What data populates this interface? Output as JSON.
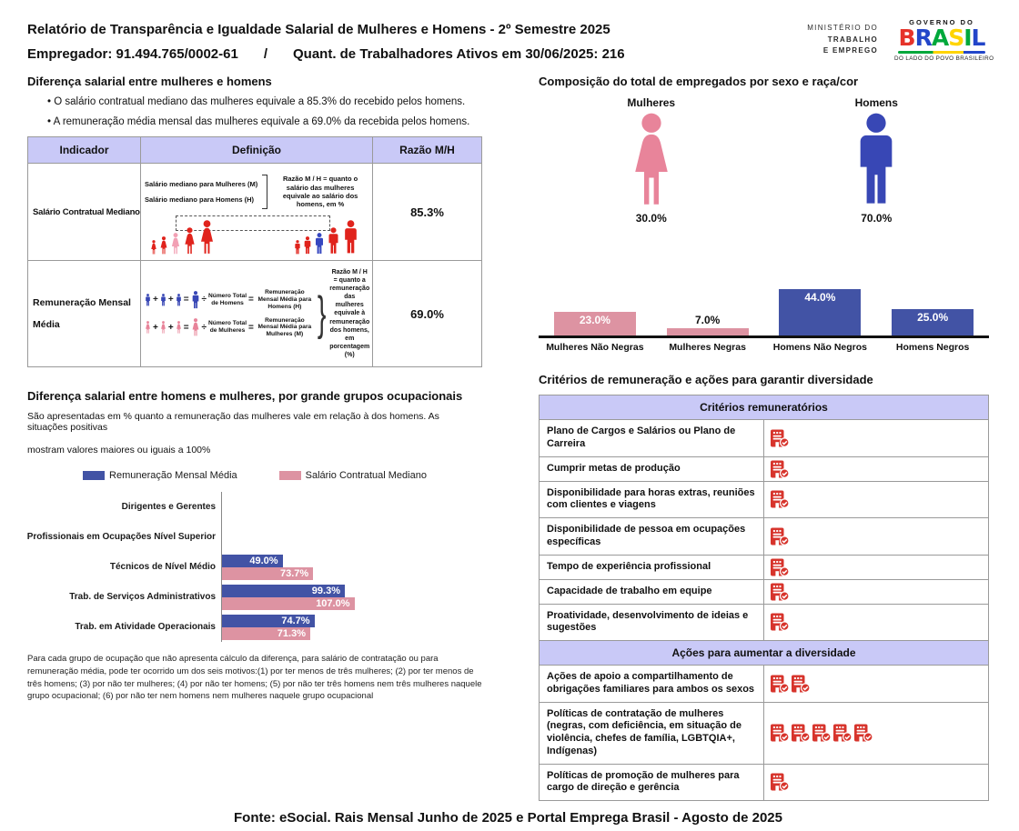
{
  "header": {
    "title": "Relatório de Transparência e Igualdade Salarial de Mulheres e Homens - 2º Semestre 2025",
    "employer": "Empregador: 91.494.765/0002-61",
    "separator": "/",
    "workers": "Quant. de Trabalhadores Ativos em 30/06/2025: 216",
    "ministry_lines": [
      "MINISTÉRIO DO",
      "TRABALHO",
      "E EMPREGO"
    ],
    "gov_logo": {
      "top": "GOVERNO DO",
      "brand": "BRASIL",
      "brand_colors": [
        "#e6332a",
        "#2346c9",
        "#00a83b",
        "#ffd400",
        "#00a83b",
        "#2346c9"
      ],
      "bottom": "DO LADO DO POVO BRASILEIRO"
    }
  },
  "salary_diff": {
    "title": "Diferença salarial entre mulheres e homens",
    "bullets": [
      "O salário contratual mediano das mulheres equivale a 85.3% do recebido pelos homens.",
      "A remuneração média mensal das mulheres equivale a 69.0% da recebida pelos homens."
    ],
    "table": {
      "headers": [
        "Indicador",
        "Definição",
        "Razão M/H"
      ],
      "rows": [
        {
          "indicator": "Salário Contratual Mediano",
          "def_lines": [
            "Salário mediano para Mulheres (M)",
            "Salário mediano para Homens (H)"
          ],
          "def_note": "Razão M / H = quanto o salário das mulheres equivale ao salário dos homens, em %",
          "ratio": "85.3%"
        },
        {
          "indicator": "Remuneração Mensal Média",
          "equations": [
            {
              "divisor": "Número Total de Homens",
              "result": "Remuneração Mensal Média para Homens (H)"
            },
            {
              "divisor": "Número Total de Mulheres",
              "result": "Remuneração Mensal Média para Mulheres (M)"
            }
          ],
          "def_note": "Razão M / H = quanto a remuneração das mulheres equivale à remuneração dos homens, em porcentagem (%)",
          "ratio": "69.0%"
        }
      ]
    }
  },
  "symbols": {
    "plus": "+",
    "equals": "=",
    "divide": "÷"
  },
  "composition": {
    "title": "Composição do total de empregados por sexo e raça/cor",
    "female": {
      "label": "Mulheres",
      "value": "30.0%"
    },
    "male": {
      "label": "Homens",
      "value": "70.0%"
    }
  },
  "occupational": {
    "title": "Diferença salarial entre homens e mulheres, por grande grupos ocupacionais",
    "subtitle_lines": [
      "São apresentadas em % quanto a remuneração das mulheres vale em relação à dos homens. As situações positivas",
      "mostram valores maiores ou iguais a 100%"
    ],
    "footnote": "Para cada grupo de ocupação que não apresenta cálculo da diferença, para salário de contratação ou para remuneração média, pode ter ocorrido um dos seis motivos:(1) por ter menos de três mulheres; (2) por ter menos de três homens; (3) por não ter mulheres; (4) por não ter homens; (5) por não ter três homens nem três mulheres naquele grupo ocupacional; (6) por não ter nem homens nem mulheres naquele grupo ocupacional"
  },
  "criterios": {
    "title": "Critérios de remuneração e ações para garantir diversidade",
    "sections": [
      {
        "header": "Critérios remuneratórios",
        "rows": [
          {
            "label": "Plano de Cargos e Salários ou Plano de Carreira",
            "icons": 1
          },
          {
            "label": "Cumprir metas de produção",
            "icons": 1
          },
          {
            "label": "Disponibilidade para horas extras, reuniões com clientes e viagens",
            "icons": 1
          },
          {
            "label": "Disponibilidade de pessoa em ocupações específicas",
            "icons": 1
          },
          {
            "label": "Tempo de experiência profissional",
            "icons": 1
          },
          {
            "label": "Capacidade de trabalho em equipe",
            "icons": 1
          },
          {
            "label": "Proatividade, desenvolvimento de ideias e sugestões",
            "icons": 1
          }
        ]
      },
      {
        "header": "Ações para aumentar a diversidade",
        "rows": [
          {
            "label": "Ações de apoio a compartilhamento de obrigações familiares para ambos os sexos",
            "icons": 2
          },
          {
            "label": "Políticas de contratação de mulheres (negras, com deficiência, em situação de violência, chefes de família, LGBTQIA+, Indígenas)",
            "icons": 5
          },
          {
            "label": "Políticas de promoção de mulheres para cargo de direção e gerência",
            "icons": 1
          }
        ]
      }
    ]
  },
  "footer": {
    "source": "Fonte: eSocial. Rais Mensal Junho de 2025 e Portal Emprega Brasil - Agosto de 2025"
  },
  "colors": {
    "accent_lavender": "#c9c9f7",
    "bar_blue": "#4253a5",
    "bar_pink": "#dd93a2",
    "figure_pink": "#e8849a",
    "figure_blue": "#3847b5",
    "people_red": "#e0231c",
    "highlight_pink": "#f2a0b4",
    "highlight_blue": "#3647c0",
    "icon_red": "#d7342c"
  },
  "chart_data": [
    {
      "id": "composition_by_race",
      "type": "bar",
      "title": "Composição do total de empregados por sexo e raça/cor",
      "categories": [
        "Mulheres Não Negras",
        "Mulheres Negras",
        "Homens Não Negros",
        "Homens Negros"
      ],
      "values": [
        23.0,
        7.0,
        44.0,
        25.0
      ],
      "unit": "%",
      "bar_colors": [
        "#dd93a2",
        "#dd93a2",
        "#4253a5",
        "#4253a5"
      ],
      "ylim": [
        0,
        50
      ],
      "grid": false,
      "value_labels": "on_bars"
    },
    {
      "id": "occupational_salary_gap",
      "type": "bar",
      "orientation": "horizontal",
      "categories": [
        "Dirigentes e Gerentes",
        "Profissionais em Ocupações Nível Superior",
        "Técnicos de Nível Médio",
        "Trab. de Serviços Administrativos",
        "Trab. em Atividade Operacionais"
      ],
      "series": [
        {
          "name": "Remuneração Mensal Média",
          "color": "#4253a5",
          "values": [
            null,
            null,
            49.0,
            99.3,
            74.7
          ]
        },
        {
          "name": "Salário Contratual Mediano",
          "color": "#dd93a2",
          "values": [
            null,
            null,
            73.7,
            107.0,
            71.3
          ]
        }
      ],
      "unit": "%",
      "xlim": [
        0,
        210
      ],
      "legend_position": "top",
      "grid": false
    }
  ]
}
